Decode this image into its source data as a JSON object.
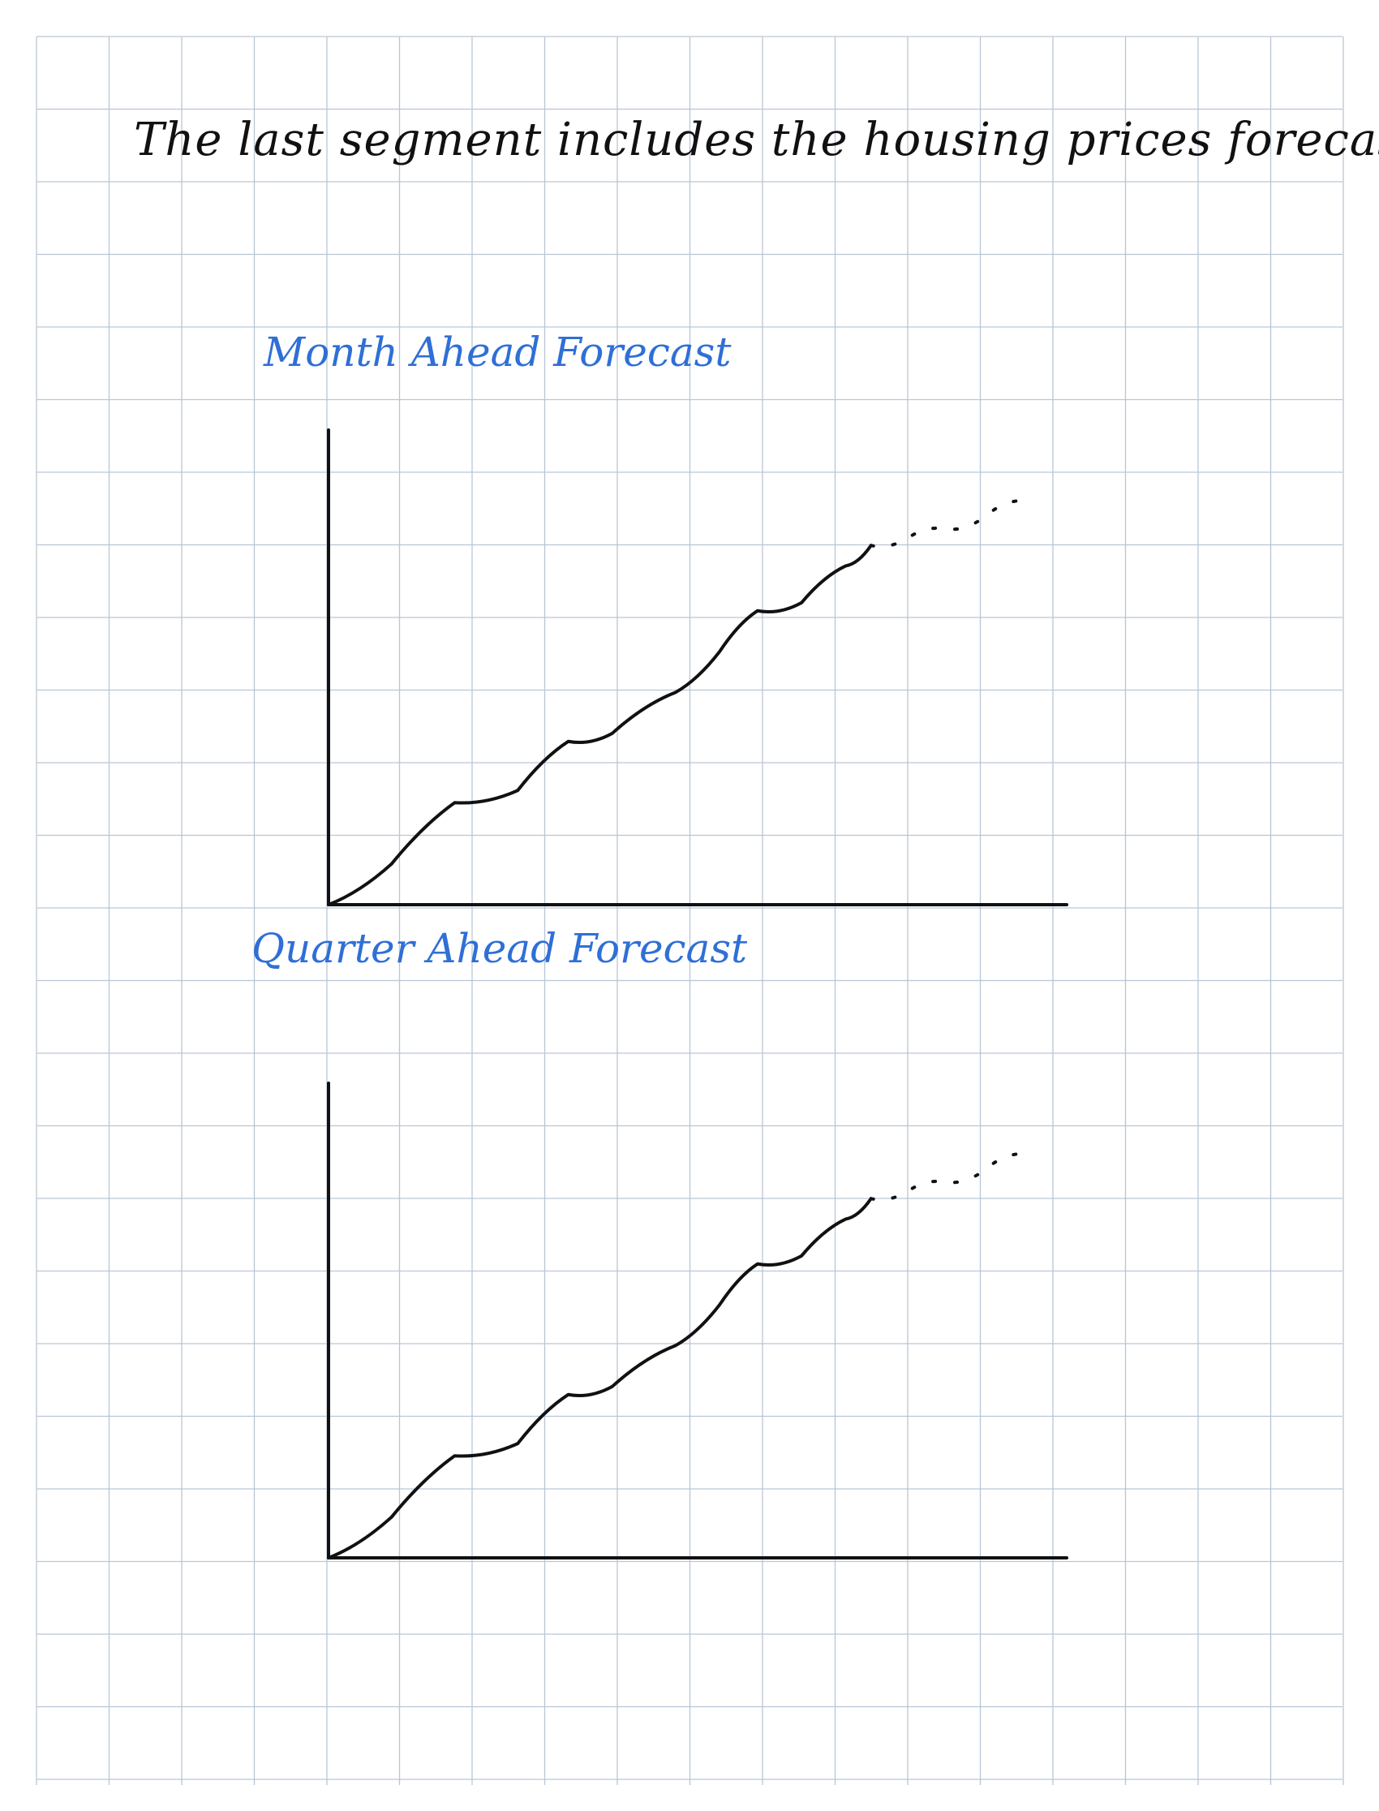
{
  "page": {
    "heading": "The last segment includes the housing prices forecast",
    "ink_color": "#111111",
    "accent_color": "#2f6fd6",
    "grid_color": "#b9c6d6"
  },
  "chart_data": [
    {
      "type": "line",
      "title": "Month Ahead Forecast",
      "xlabel": "",
      "ylabel": "",
      "grid": true,
      "series": [
        {
          "style": "solid",
          "x": [
            0,
            0.1,
            0.2,
            0.3,
            0.38,
            0.45,
            0.55,
            0.62,
            0.68,
            0.75,
            0.82,
            0.86
          ],
          "y": [
            0,
            0.1,
            0.25,
            0.28,
            0.4,
            0.42,
            0.52,
            0.62,
            0.72,
            0.74,
            0.83,
            0.88
          ]
        },
        {
          "style": "dashed",
          "x": [
            0.86,
            0.92,
            0.98,
            1.04,
            1.1
          ],
          "y": [
            0.88,
            0.9,
            0.92,
            0.95,
            0.99
          ]
        }
      ]
    },
    {
      "type": "line",
      "title": "Quarter Ahead Forecast",
      "xlabel": "",
      "ylabel": "",
      "grid": true,
      "series": [
        {
          "style": "solid",
          "x": [
            0,
            0.1,
            0.2,
            0.3,
            0.38,
            0.45,
            0.55,
            0.62,
            0.68,
            0.75,
            0.82,
            0.86
          ],
          "y": [
            0,
            0.1,
            0.25,
            0.28,
            0.4,
            0.42,
            0.52,
            0.62,
            0.72,
            0.74,
            0.83,
            0.88
          ]
        },
        {
          "style": "dashed",
          "x": [
            0.86,
            0.92,
            0.98,
            1.04,
            1.1
          ],
          "y": [
            0.88,
            0.9,
            0.92,
            0.95,
            0.99
          ]
        }
      ]
    }
  ]
}
